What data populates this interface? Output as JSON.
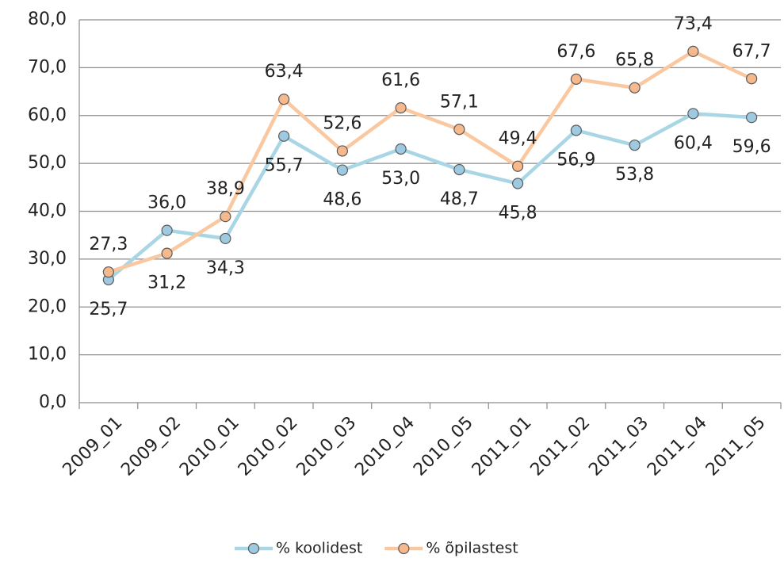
{
  "chart_data": {
    "type": "line",
    "categories": [
      "2009_01",
      "2009_02",
      "2010_01",
      "2010_02",
      "2010_03",
      "2010_04",
      "2010_05",
      "2011_01",
      "2011_02",
      "2011_03",
      "2011_04",
      "2011_05"
    ],
    "series": [
      {
        "name": "% koolidest",
        "color": "#a9d6e5",
        "marker_color": "#9ecae1",
        "values": [
          25.7,
          36.0,
          34.3,
          55.7,
          48.6,
          53.0,
          48.7,
          45.8,
          56.9,
          53.8,
          60.4,
          59.6
        ],
        "value_labels": [
          "25,7",
          "36,0",
          "34,3",
          "55,7",
          "48,6",
          "53,0",
          "48,7",
          "45,8",
          "56,9",
          "53,8",
          "60,4",
          "59,6"
        ]
      },
      {
        "name": "% õpilastest",
        "color": "#fac8a0",
        "marker_color": "#f6b98e",
        "values": [
          27.3,
          31.2,
          38.9,
          63.4,
          52.6,
          61.6,
          57.1,
          49.4,
          67.6,
          65.8,
          73.4,
          67.7
        ],
        "value_labels": [
          "27,3",
          "31,2",
          "38,9",
          "63,4",
          "52,6",
          "61,6",
          "57,1",
          "49,4",
          "67,6",
          "65,8",
          "73,4",
          "67,7"
        ]
      }
    ],
    "ylim": [
      0,
      80
    ],
    "yticks": [
      {
        "value": 0,
        "label": "0,0"
      },
      {
        "value": 10,
        "label": "10,0"
      },
      {
        "value": 20,
        "label": "20,0"
      },
      {
        "value": 30,
        "label": "30,0"
      },
      {
        "value": 40,
        "label": "40,0"
      },
      {
        "value": 50,
        "label": "50,0"
      },
      {
        "value": 60,
        "label": "60,0"
      },
      {
        "value": 70,
        "label": "70,0"
      },
      {
        "value": 80,
        "label": "80,0"
      }
    ],
    "grid": true,
    "legend": "bottom"
  }
}
